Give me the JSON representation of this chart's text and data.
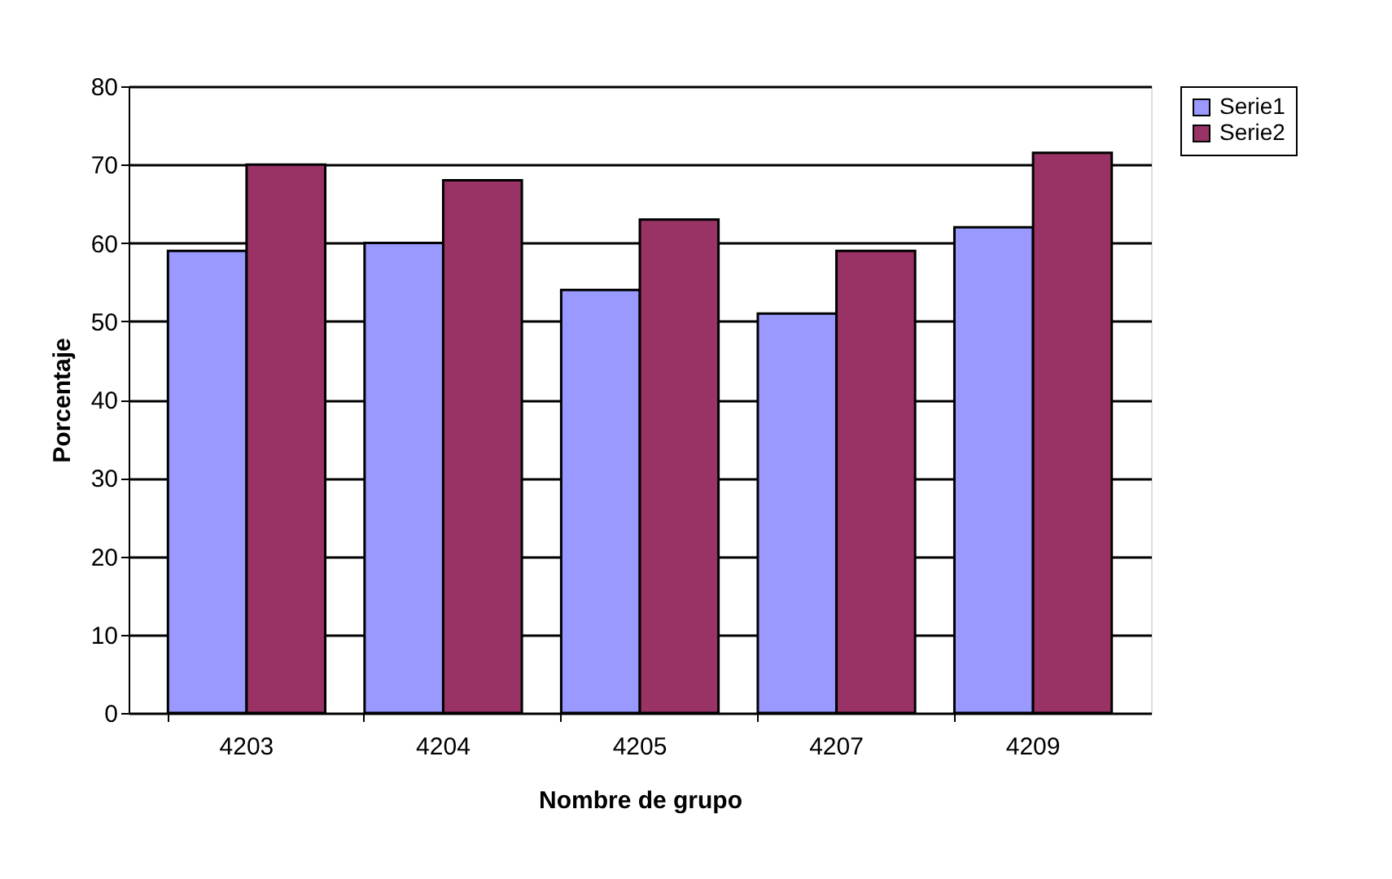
{
  "chart_data": {
    "type": "bar",
    "xlabel": "Nombre de grupo",
    "ylabel": "Porcentaje",
    "categories": [
      "4203",
      "4204",
      "4205",
      "4207",
      "4209"
    ],
    "series": [
      {
        "name": "Serie1",
        "color": "#9999ff",
        "values": [
          59,
          60,
          54,
          51,
          62
        ]
      },
      {
        "name": "Serie2",
        "color": "#993366",
        "values": [
          70,
          68,
          63,
          59,
          71.5
        ]
      }
    ],
    "ylim": [
      0,
      80
    ],
    "yticks": [
      0,
      10,
      20,
      30,
      40,
      50,
      60,
      70,
      80
    ],
    "grid": "y",
    "legend": "right"
  }
}
